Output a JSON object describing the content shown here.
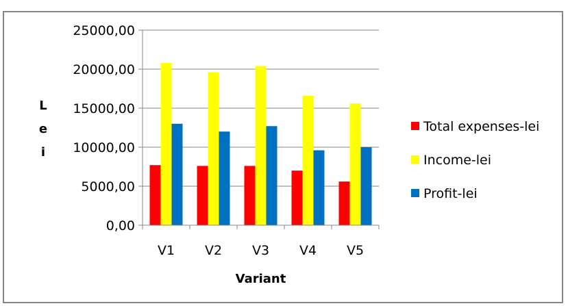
{
  "chart_data": {
    "type": "bar",
    "title": "",
    "xlabel": "Variant",
    "ylabel_chars": [
      "L",
      "e",
      "i"
    ],
    "categories": [
      "V1",
      "V2",
      "V3",
      "V4",
      "V5"
    ],
    "ylim": [
      0,
      25000
    ],
    "yticks": [
      0,
      5000,
      10000,
      15000,
      20000,
      25000
    ],
    "ytick_labels": [
      "0,00",
      "5000,00",
      "10000,00",
      "15000,00",
      "20000,00",
      "25000,00"
    ],
    "grid": true,
    "legend_position": "right",
    "series": [
      {
        "name": "Total expenses-lei",
        "color": "#ff0000",
        "values": [
          7700,
          7600,
          7600,
          7000,
          5600
        ]
      },
      {
        "name": "Income-lei",
        "color": "#ffff00",
        "values": [
          20800,
          19600,
          20400,
          16600,
          15600
        ]
      },
      {
        "name": "Profit-lei",
        "color": "#0070c0",
        "values": [
          13000,
          12000,
          12700,
          9600,
          10000
        ]
      }
    ]
  }
}
